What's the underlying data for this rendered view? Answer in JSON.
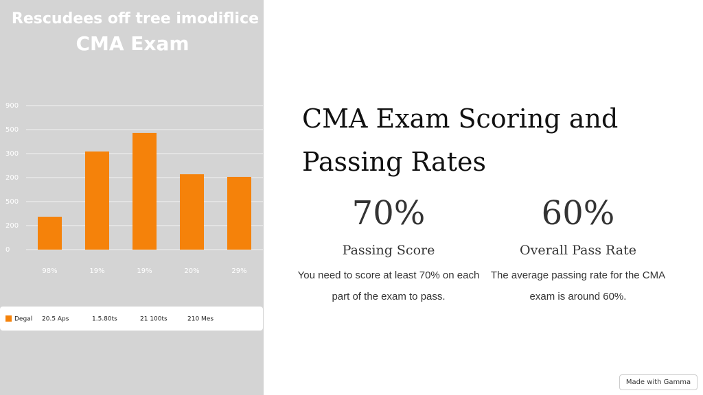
{
  "chart_data": {
    "type": "bar",
    "title": "Rescudees off tree imodiflice",
    "subtitle": "CMA Exam",
    "categories": [
      "98%",
      "19%",
      "19%",
      "20%",
      "29%"
    ],
    "values": [
      1.37,
      4.09,
      4.86,
      3.14,
      3.03
    ],
    "color": "#f5820a",
    "ylim": [
      0,
      6
    ],
    "yticks": [
      {
        "value": 0,
        "label": "0"
      },
      {
        "value": 1,
        "label": "200"
      },
      {
        "value": 2,
        "label": "500"
      },
      {
        "value": 3,
        "label": "200"
      },
      {
        "value": 4,
        "label": "300"
      },
      {
        "value": 5,
        "label": "500"
      },
      {
        "value": 6,
        "label": "900"
      }
    ],
    "grid": true,
    "legend": {
      "name": "Degal",
      "items": [
        "20.5 Aps",
        "1.5.80ts",
        "21 100ts",
        "210 Mes"
      ]
    }
  },
  "slide": {
    "heading": "CMA Exam Scoring and Passing Rates",
    "stats": [
      {
        "value": "70%",
        "label": "Passing Score",
        "description": "You need to score at least 70% on each part of the exam to pass."
      },
      {
        "value": "60%",
        "label": "Overall Pass Rate",
        "description": "The average passing rate for the CMA exam is around 60%."
      }
    ],
    "badge": "Made with Gamma"
  }
}
